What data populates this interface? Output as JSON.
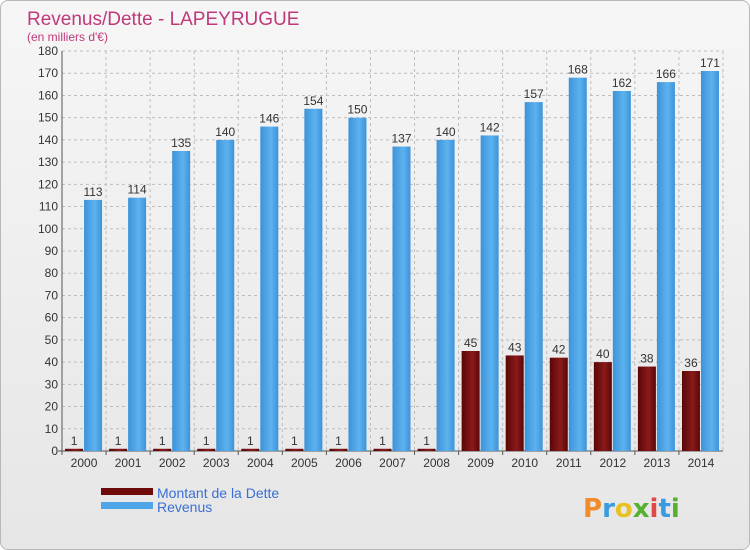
{
  "header": {
    "title": "Revenus/Dette - LAPEYRUGUE",
    "subtitle": "(en milliers d'€)"
  },
  "logo": {
    "text": "Proxiti",
    "colors": [
      "#f08c2c",
      "#3a9be0",
      "#e8c020",
      "#58b030",
      "#e04848",
      "#3a9be0",
      "#58b030"
    ]
  },
  "colors": {
    "dette": "#6e0a0a",
    "revenus": "#4ea6e8",
    "grid": "#bdbdbd",
    "title": "#c0397a"
  },
  "chart_data": {
    "type": "bar",
    "title": "Revenus/Dette - LAPEYRUGUE",
    "subtitle": "(en milliers d'€)",
    "categories": [
      "2000",
      "2001",
      "2002",
      "2003",
      "2004",
      "2005",
      "2006",
      "2007",
      "2008",
      "2009",
      "2010",
      "2011",
      "2012",
      "2013",
      "2014"
    ],
    "series": [
      {
        "name": "Montant de la Dette",
        "color": "#6e0a0a",
        "values": [
          1,
          1,
          1,
          1,
          1,
          1,
          1,
          1,
          1,
          45,
          43,
          42,
          40,
          38,
          36
        ]
      },
      {
        "name": "Revenus",
        "color": "#4ea6e8",
        "values": [
          113,
          114,
          135,
          140,
          146,
          154,
          150,
          137,
          140,
          142,
          157,
          168,
          162,
          166,
          171
        ]
      }
    ],
    "ylim": [
      0,
      180
    ],
    "yticks": [
      0,
      10,
      20,
      30,
      40,
      50,
      60,
      70,
      80,
      90,
      100,
      110,
      120,
      130,
      140,
      150,
      160,
      170,
      180
    ],
    "grid": true,
    "legend": "bottom-left"
  }
}
